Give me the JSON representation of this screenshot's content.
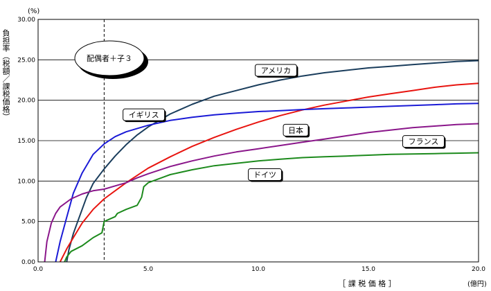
{
  "chart_data": {
    "type": "line",
    "ylabel": "負担率（税額／課税価格）",
    "y_unit": "(%)",
    "xlabel": "［ 課 税 価 格 ］",
    "x_unit": "(億円)",
    "xlim": [
      0,
      20
    ],
    "ylim": [
      0,
      30
    ],
    "x_ticks": [
      "0.0",
      "5.0",
      "10.0",
      "15.0",
      "20.0"
    ],
    "y_ticks": [
      "0.00",
      "5.00",
      "10.00",
      "15.00",
      "20.00",
      "25.00",
      "30.00"
    ],
    "grid": true,
    "reference_line_x": 3.0,
    "callout": "配偶者＋子３",
    "colors": {
      "アメリカ": "#1a3d5c",
      "日本": "#e8140f",
      "イギリス": "#1a1ad6",
      "フランス": "#8a168a",
      "ドイツ": "#1c8a1c"
    },
    "series": [
      {
        "name": "アメリカ",
        "label_pos": [
          10.8,
          23.7
        ],
        "points": [
          [
            1.3,
            0
          ],
          [
            1.4,
            1.5
          ],
          [
            1.6,
            3.5
          ],
          [
            1.8,
            5
          ],
          [
            2.0,
            6.5
          ],
          [
            2.2,
            8
          ],
          [
            2.5,
            9.7
          ],
          [
            3.0,
            11.5
          ],
          [
            3.5,
            13.1
          ],
          [
            4.0,
            14.5
          ],
          [
            4.5,
            15.7
          ],
          [
            5.0,
            16.7
          ],
          [
            6.0,
            18.3
          ],
          [
            7.0,
            19.5
          ],
          [
            8.0,
            20.5
          ],
          [
            9.0,
            21.2
          ],
          [
            10.0,
            21.9
          ],
          [
            11.0,
            22.5
          ],
          [
            12.0,
            23.0
          ],
          [
            13.0,
            23.4
          ],
          [
            14.0,
            23.7
          ],
          [
            15.0,
            24.0
          ],
          [
            16.0,
            24.2
          ],
          [
            17.0,
            24.4
          ],
          [
            18.0,
            24.6
          ],
          [
            19.0,
            24.8
          ],
          [
            20.0,
            24.9
          ]
        ]
      },
      {
        "name": "日本",
        "label_pos": [
          11.7,
          16.3
        ],
        "points": [
          [
            1.0,
            0
          ],
          [
            1.3,
            1.6
          ],
          [
            1.6,
            3.0
          ],
          [
            2.0,
            4.8
          ],
          [
            2.5,
            6.5
          ],
          [
            3.0,
            7.8
          ],
          [
            3.5,
            8.8
          ],
          [
            4.0,
            9.8
          ],
          [
            4.5,
            10.7
          ],
          [
            5.0,
            11.6
          ],
          [
            6.0,
            13.0
          ],
          [
            7.0,
            14.3
          ],
          [
            8.0,
            15.4
          ],
          [
            9.0,
            16.4
          ],
          [
            10.0,
            17.3
          ],
          [
            11.0,
            18.1
          ],
          [
            12.0,
            18.8
          ],
          [
            13.0,
            19.4
          ],
          [
            14.0,
            19.9
          ],
          [
            15.0,
            20.4
          ],
          [
            16.0,
            20.8
          ],
          [
            17.0,
            21.2
          ],
          [
            18.0,
            21.6
          ],
          [
            19.0,
            21.9
          ],
          [
            20.0,
            22.1
          ]
        ]
      },
      {
        "name": "イギリス",
        "label_pos": [
          4.8,
          18.2
        ],
        "points": [
          [
            0.8,
            0
          ],
          [
            1.0,
            2.5
          ],
          [
            1.3,
            5.5
          ],
          [
            1.6,
            8.5
          ],
          [
            2.0,
            11.0
          ],
          [
            2.5,
            13.3
          ],
          [
            3.0,
            14.6
          ],
          [
            3.5,
            15.5
          ],
          [
            4.0,
            16.1
          ],
          [
            5.0,
            16.9
          ],
          [
            6.0,
            17.5
          ],
          [
            7.0,
            17.9
          ],
          [
            8.0,
            18.2
          ],
          [
            9.0,
            18.4
          ],
          [
            10.0,
            18.6
          ],
          [
            11.0,
            18.7
          ],
          [
            12.0,
            18.85
          ],
          [
            13.0,
            18.95
          ],
          [
            14.0,
            19.05
          ],
          [
            15.0,
            19.15
          ],
          [
            16.0,
            19.25
          ],
          [
            17.0,
            19.35
          ],
          [
            18.0,
            19.45
          ],
          [
            19.0,
            19.55
          ],
          [
            20.0,
            19.6
          ]
        ]
      },
      {
        "name": "フランス",
        "label_pos": [
          17.5,
          14.9
        ],
        "points": [
          [
            0.3,
            0
          ],
          [
            0.4,
            2.5
          ],
          [
            0.6,
            4.8
          ],
          [
            0.8,
            6.0
          ],
          [
            1.0,
            6.8
          ],
          [
            1.5,
            7.8
          ],
          [
            2.0,
            8.4
          ],
          [
            2.5,
            8.8
          ],
          [
            3.0,
            9.0
          ],
          [
            3.5,
            9.4
          ],
          [
            4.0,
            9.8
          ],
          [
            4.5,
            10.4
          ],
          [
            5.0,
            10.9
          ],
          [
            6.0,
            11.8
          ],
          [
            7.0,
            12.5
          ],
          [
            8.0,
            13.1
          ],
          [
            9.0,
            13.6
          ],
          [
            10.0,
            14.0
          ],
          [
            11.0,
            14.4
          ],
          [
            12.0,
            14.8
          ],
          [
            13.0,
            15.2
          ],
          [
            14.0,
            15.6
          ],
          [
            15.0,
            16.0
          ],
          [
            16.0,
            16.3
          ],
          [
            17.0,
            16.6
          ],
          [
            18.0,
            16.8
          ],
          [
            19.0,
            17.0
          ],
          [
            20.0,
            17.1
          ]
        ]
      },
      {
        "name": "ドイツ",
        "label_pos": [
          10.3,
          10.8
        ],
        "points": [
          [
            1.2,
            0
          ],
          [
            1.3,
            0.6
          ],
          [
            1.5,
            1.3
          ],
          [
            2.0,
            2.0
          ],
          [
            2.5,
            3.0
          ],
          [
            2.9,
            3.6
          ],
          [
            3.0,
            5.0
          ],
          [
            3.5,
            5.6
          ],
          [
            3.6,
            6.0
          ],
          [
            4.0,
            6.5
          ],
          [
            4.5,
            7.0
          ],
          [
            4.7,
            8.0
          ],
          [
            4.8,
            9.3
          ],
          [
            5.0,
            9.8
          ],
          [
            6.0,
            10.8
          ],
          [
            7.0,
            11.4
          ],
          [
            8.0,
            11.9
          ],
          [
            9.0,
            12.2
          ],
          [
            10.0,
            12.5
          ],
          [
            11.0,
            12.7
          ],
          [
            12.0,
            12.9
          ],
          [
            13.0,
            13.0
          ],
          [
            14.0,
            13.1
          ],
          [
            15.0,
            13.2
          ],
          [
            16.0,
            13.3
          ],
          [
            17.0,
            13.35
          ],
          [
            18.0,
            13.4
          ],
          [
            19.0,
            13.45
          ],
          [
            20.0,
            13.5
          ]
        ]
      }
    ]
  }
}
